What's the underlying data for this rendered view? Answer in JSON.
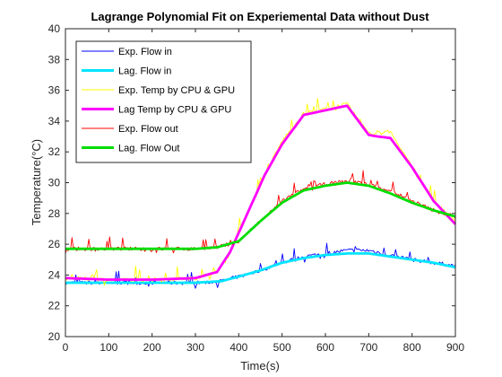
{
  "chart_data": {
    "type": "line",
    "title": "Lagrange Polynomial Fit on Experiemental Data without Dust",
    "xlabel": "Time(s)",
    "ylabel": "Temperature(°C)",
    "xlim": [
      0,
      900
    ],
    "ylim": [
      20,
      40
    ],
    "xticks": [
      0,
      100,
      200,
      300,
      400,
      500,
      600,
      700,
      800,
      900
    ],
    "yticks": [
      20,
      22,
      24,
      26,
      28,
      30,
      32,
      34,
      36,
      38,
      40
    ],
    "grid": false,
    "legend_position": "top-left",
    "series": [
      {
        "name": "Exp. Flow in",
        "color": "#0000ff",
        "style": "noisy",
        "x": [
          0,
          100,
          200,
          300,
          360,
          400,
          450,
          500,
          550,
          600,
          650,
          700,
          750,
          800,
          850,
          900
        ],
        "y": [
          23.5,
          23.5,
          23.5,
          23.5,
          23.6,
          23.9,
          24.3,
          24.8,
          25.2,
          25.4,
          25.6,
          25.6,
          25.3,
          25.0,
          24.8,
          24.6
        ]
      },
      {
        "name": "Lag. Flow in",
        "color": "#00e5ff",
        "style": "thick",
        "x": [
          0,
          100,
          200,
          300,
          360,
          400,
          450,
          500,
          550,
          600,
          650,
          700,
          750,
          800,
          850,
          900
        ],
        "y": [
          23.5,
          23.5,
          23.5,
          23.5,
          23.6,
          23.9,
          24.3,
          24.8,
          25.1,
          25.3,
          25.4,
          25.4,
          25.2,
          25.0,
          24.8,
          24.5
        ]
      },
      {
        "name": "Exp. Temp by CPU & GPU",
        "color": "#ffff00",
        "style": "noisy",
        "x": [
          0,
          100,
          200,
          300,
          350,
          380,
          420,
          460,
          500,
          550,
          600,
          650,
          700,
          720,
          750,
          800,
          850,
          900
        ],
        "y": [
          23.8,
          23.7,
          23.7,
          23.8,
          24.2,
          25.5,
          28.0,
          30.5,
          32.7,
          34.5,
          34.8,
          35.1,
          33.2,
          33.2,
          33.3,
          31.0,
          28.8,
          27.5
        ]
      },
      {
        "name": "Lag Temp by CPU & GPU",
        "color": "#ff00ff",
        "style": "thick",
        "x": [
          0,
          100,
          200,
          300,
          350,
          380,
          420,
          460,
          500,
          550,
          600,
          650,
          700,
          720,
          750,
          800,
          850,
          900
        ],
        "y": [
          23.8,
          23.7,
          23.7,
          23.8,
          24.2,
          25.5,
          28.0,
          30.5,
          32.5,
          34.4,
          34.7,
          35.0,
          33.1,
          33.0,
          32.9,
          31.0,
          28.8,
          27.3
        ]
      },
      {
        "name": "Exp. Flow out",
        "color": "#ff0000",
        "style": "noisy",
        "x": [
          0,
          100,
          200,
          300,
          350,
          400,
          450,
          500,
          550,
          600,
          650,
          700,
          750,
          800,
          850,
          900
        ],
        "y": [
          25.7,
          25.7,
          25.7,
          25.7,
          25.8,
          26.2,
          27.5,
          28.8,
          29.6,
          29.9,
          30.1,
          29.9,
          29.5,
          28.8,
          28.2,
          27.8
        ]
      },
      {
        "name": "Lag. Flow Out",
        "color": "#00dd00",
        "style": "thick",
        "x": [
          0,
          100,
          200,
          300,
          350,
          400,
          450,
          500,
          550,
          600,
          650,
          700,
          750,
          800,
          850,
          900
        ],
        "y": [
          25.7,
          25.7,
          25.7,
          25.7,
          25.8,
          26.2,
          27.5,
          28.7,
          29.5,
          29.8,
          30.0,
          29.8,
          29.3,
          28.7,
          28.2,
          27.8
        ]
      }
    ]
  }
}
